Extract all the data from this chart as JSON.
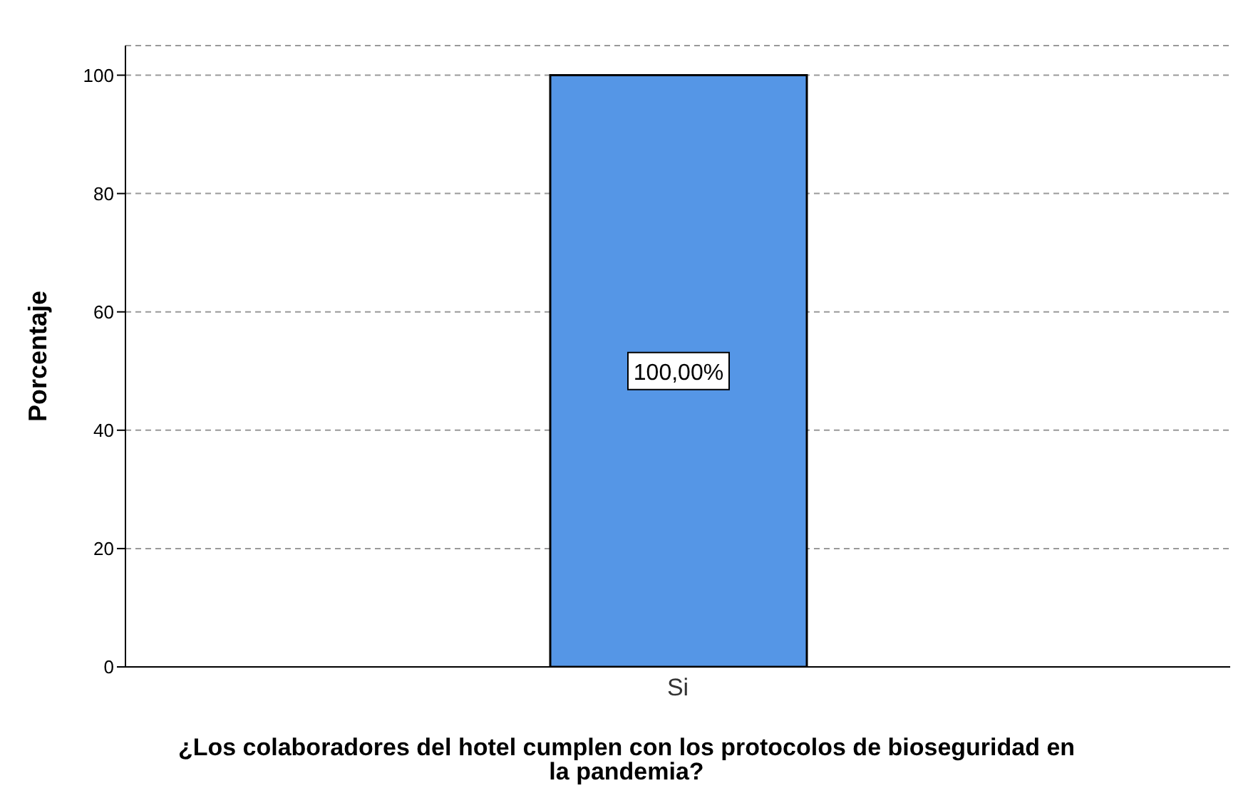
{
  "chart_data": {
    "type": "bar",
    "xlabel": "¿Los colaboradores del hotel cumplen con los protocolos de bioseguridad en la pandemia?",
    "ylabel": "Porcentaje",
    "categories": [
      "Si"
    ],
    "values": [
      100
    ],
    "color": "#5596e6",
    "value_labels": [
      "100,00%"
    ],
    "ylim": [
      0,
      105
    ],
    "yticks": [
      0,
      20,
      40,
      60,
      80,
      100
    ],
    "grid": "y"
  }
}
